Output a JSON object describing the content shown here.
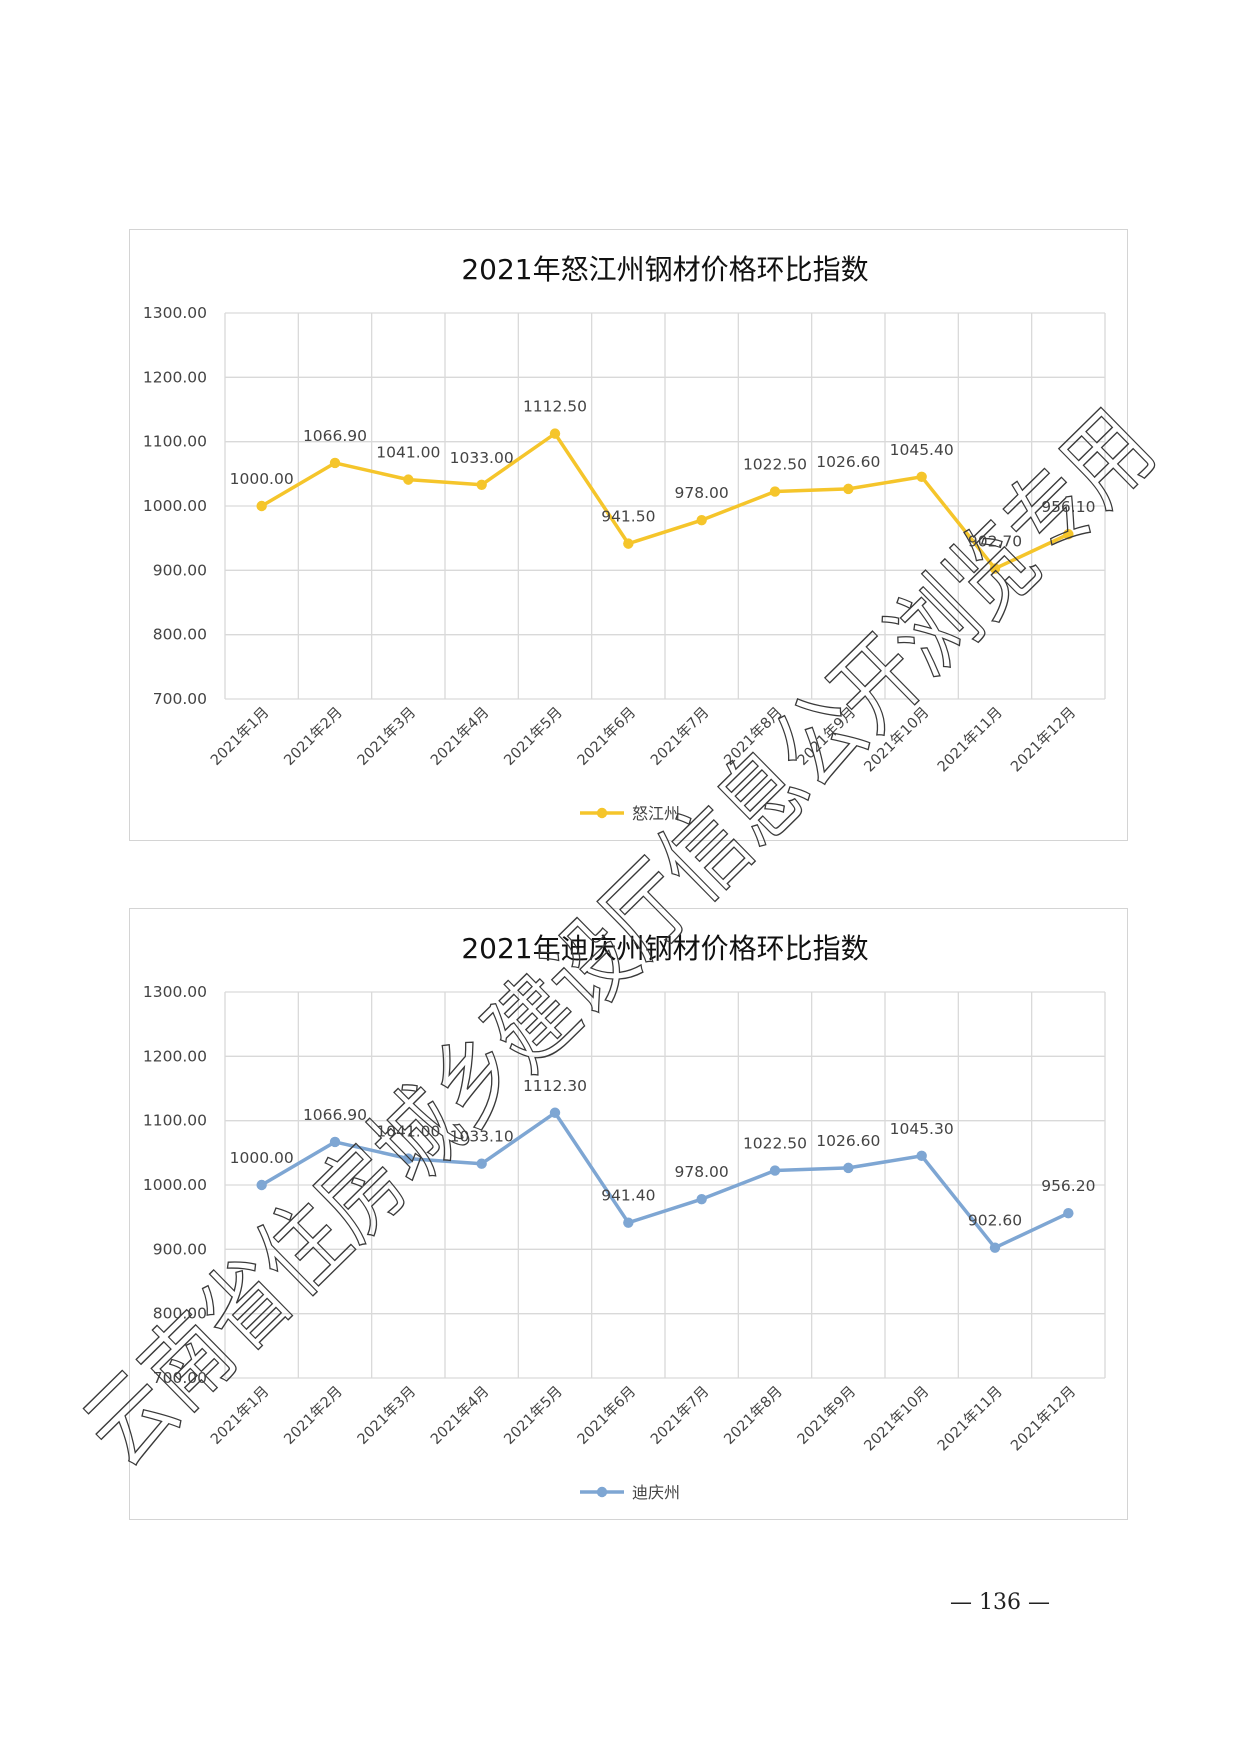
{
  "chart_data": [
    {
      "type": "line",
      "title": "2021年怒江州钢材价格环比指数",
      "categories": [
        "2021年1月",
        "2021年2月",
        "2021年3月",
        "2021年4月",
        "2021年5月",
        "2021年6月",
        "2021年7月",
        "2021年8月",
        "2021年9月",
        "2021年10月",
        "2021年11月",
        "2021年12月"
      ],
      "series": [
        {
          "name": "怒江州",
          "color": "#f5c52b",
          "values": [
            1000.0,
            1066.9,
            1041.0,
            1033.0,
            1112.5,
            941.5,
            978.0,
            1022.5,
            1026.6,
            1045.4,
            902.7,
            956.1
          ],
          "labels": [
            "1000.00",
            "1066.90",
            "1041.00",
            "1033.00",
            "1112.50",
            "941.50",
            "978.00",
            "1022.50",
            "1026.60",
            "1045.40",
            "902.70",
            "956.10"
          ]
        }
      ],
      "ylim": [
        700,
        1300
      ],
      "yticks": [
        "700.00",
        "800.00",
        "900.00",
        "1000.00",
        "1100.00",
        "1200.00",
        "1300.00"
      ],
      "grid": true,
      "legend": "bottom"
    },
    {
      "type": "line",
      "title": "2021年迪庆州钢材价格环比指数",
      "categories": [
        "2021年1月",
        "2021年2月",
        "2021年3月",
        "2021年4月",
        "2021年5月",
        "2021年6月",
        "2021年7月",
        "2021年8月",
        "2021年9月",
        "2021年10月",
        "2021年11月",
        "2021年12月"
      ],
      "series": [
        {
          "name": "迪庆州",
          "color": "#7ea6d3",
          "values": [
            1000.0,
            1066.9,
            1041.0,
            1033.1,
            1112.3,
            941.4,
            978.0,
            1022.5,
            1026.6,
            1045.3,
            902.6,
            956.2
          ],
          "labels": [
            "1000.00",
            "1066.90",
            "1041.00",
            "1033.10",
            "1112.30",
            "941.40",
            "978.00",
            "1022.50",
            "1026.60",
            "1045.30",
            "902.60",
            "956.20"
          ]
        }
      ],
      "ylim": [
        700,
        1300
      ],
      "yticks": [
        "700.00",
        "800.00",
        "900.00",
        "1000.00",
        "1100.00",
        "1200.00",
        "1300.00"
      ],
      "grid": true,
      "legend": "bottom"
    }
  ],
  "page_number": "— 136 —",
  "watermark": "云南省住房城乡建设厅信息公开浏览专用"
}
